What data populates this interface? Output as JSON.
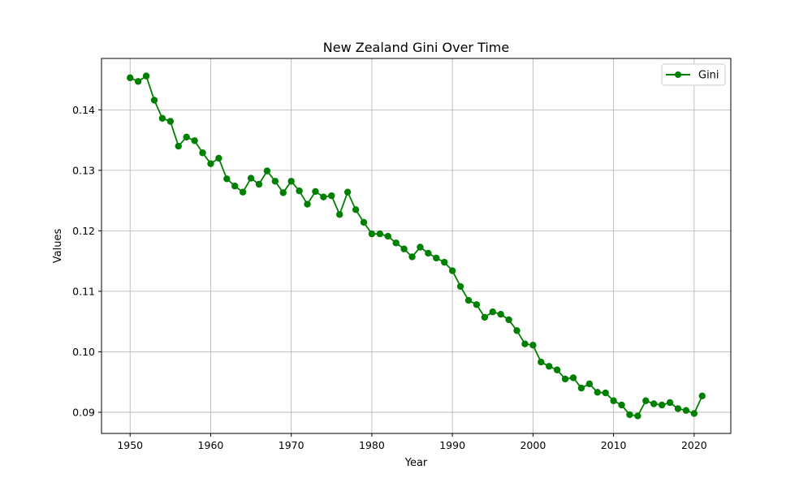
{
  "chart_data": {
    "type": "line",
    "title": "New Zealand Gini Over Time",
    "xlabel": "Year",
    "ylabel": "Values",
    "xlim": [
      1946.45,
      2024.55
    ],
    "ylim": [
      0.0865,
      0.1485
    ],
    "xticks": [
      1950,
      1960,
      1970,
      1980,
      1990,
      2000,
      2010,
      2020
    ],
    "yticks": [
      0.09,
      0.1,
      0.11,
      0.12,
      0.13,
      0.14
    ],
    "ytick_labels": [
      "0.09",
      "0.10",
      "0.11",
      "0.12",
      "0.13",
      "0.14"
    ],
    "grid": true,
    "legend_position": "top-right",
    "series": [
      {
        "name": "Gini",
        "color": "#008000",
        "marker": "circle",
        "x": [
          1950,
          1951,
          1952,
          1953,
          1954,
          1955,
          1956,
          1957,
          1958,
          1959,
          1960,
          1961,
          1962,
          1963,
          1964,
          1965,
          1966,
          1967,
          1968,
          1969,
          1970,
          1971,
          1972,
          1973,
          1974,
          1975,
          1976,
          1977,
          1978,
          1979,
          1980,
          1981,
          1982,
          1983,
          1984,
          1985,
          1986,
          1987,
          1988,
          1989,
          1990,
          1991,
          1992,
          1993,
          1994,
          1995,
          1996,
          1997,
          1998,
          1999,
          2000,
          2001,
          2002,
          2003,
          2004,
          2005,
          2006,
          2007,
          2008,
          2009,
          2010,
          2011,
          2012,
          2013,
          2014,
          2015,
          2016,
          2017,
          2018,
          2019,
          2020,
          2021
        ],
        "values": [
          0.1453,
          0.1447,
          0.1456,
          0.1416,
          0.1386,
          0.1381,
          0.134,
          0.1355,
          0.1349,
          0.1329,
          0.1311,
          0.132,
          0.1286,
          0.1274,
          0.1264,
          0.1287,
          0.1277,
          0.1299,
          0.1282,
          0.1263,
          0.1282,
          0.1266,
          0.1244,
          0.1265,
          0.1256,
          0.1258,
          0.1227,
          0.1264,
          0.1235,
          0.1214,
          0.1195,
          0.1195,
          0.1191,
          0.118,
          0.117,
          0.1157,
          0.1173,
          0.1163,
          0.1155,
          0.1148,
          0.1134,
          0.1108,
          0.1085,
          0.1078,
          0.1057,
          0.1066,
          0.1062,
          0.1053,
          0.1035,
          0.1013,
          0.1011,
          0.0983,
          0.0976,
          0.097,
          0.0955,
          0.0957,
          0.094,
          0.0947,
          0.0933,
          0.0932,
          0.0919,
          0.0912,
          0.0896,
          0.0894,
          0.0919,
          0.0914,
          0.0912,
          0.0916,
          0.0906,
          0.0903,
          0.0898,
          0.0927
        ]
      }
    ]
  }
}
